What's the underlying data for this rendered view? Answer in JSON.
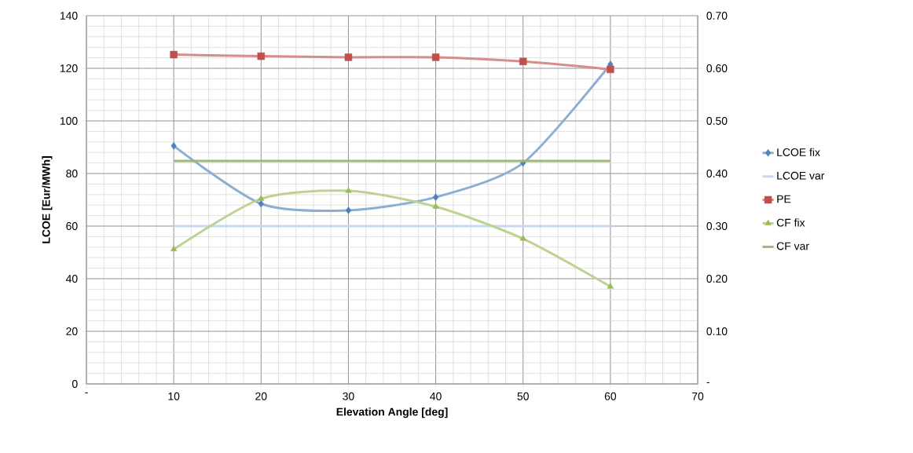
{
  "chart_data": {
    "type": "line",
    "xlabel": "Elevation Angle [deg]",
    "ylabel": "LCOE [Eur/MWh]",
    "x": [
      10,
      20,
      30,
      40,
      50,
      60
    ],
    "xlim": [
      0,
      70
    ],
    "xticks": [
      {
        "value": 0,
        "label": "-"
      },
      10,
      20,
      30,
      40,
      50,
      60,
      70
    ],
    "ylim": [
      0,
      140
    ],
    "yticks": [
      0,
      20,
      40,
      60,
      80,
      100,
      120,
      140
    ],
    "y2lim": [
      0,
      0.7
    ],
    "y2ticks": [
      {
        "value": 0,
        "label": "-"
      },
      {
        "value": 0.1,
        "label": "0.10"
      },
      {
        "value": 0.2,
        "label": "0.20"
      },
      {
        "value": 0.3,
        "label": "0.30"
      },
      {
        "value": 0.4,
        "label": "0.40"
      },
      {
        "value": 0.5,
        "label": "0.50"
      },
      {
        "value": 0.6,
        "label": "0.60"
      },
      {
        "value": 0.7,
        "label": "0.70"
      }
    ],
    "grid": true,
    "legend": "right",
    "series": [
      {
        "name": "LCOE fix",
        "color": "#4f81bd",
        "marker": "diamond",
        "values": [
          90.5,
          68.5,
          66,
          71,
          84,
          121.5
        ]
      },
      {
        "name": "LCOE var",
        "color": "#c6d9f1",
        "marker": "none",
        "values": [
          60,
          60,
          60,
          60,
          60,
          60
        ]
      },
      {
        "name": "PE",
        "color": "#c0504d",
        "marker": "square",
        "axis": "y2",
        "values": [
          0.626,
          0.623,
          0.621,
          0.621,
          0.613,
          0.598
        ]
      },
      {
        "name": "CF fix",
        "color": "#9bbb59",
        "marker": "triangle",
        "axis": "y2",
        "values": [
          0.256,
          0.352,
          0.367,
          0.337,
          0.276,
          0.185
        ]
      },
      {
        "name": "CF var",
        "color": "#9fb87a",
        "marker": "none",
        "axis": "y2",
        "values": [
          0.424,
          0.424,
          0.424,
          0.424,
          0.424,
          0.424
        ]
      }
    ]
  }
}
